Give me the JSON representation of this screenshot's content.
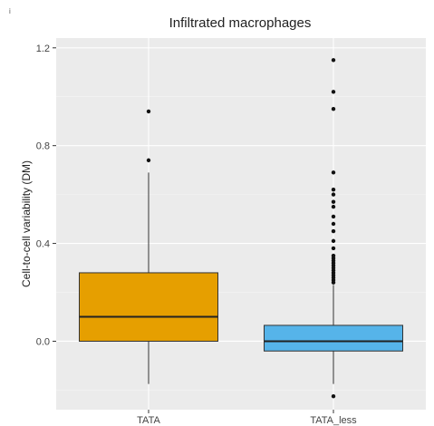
{
  "chart_data": {
    "type": "box",
    "title": "Infiltrated macrophages",
    "xlabel": "",
    "ylabel": "Cell-to-cell variability (DM)",
    "ylim": [
      -0.28,
      1.24
    ],
    "yticks": [
      0.0,
      0.4,
      0.8,
      1.2
    ],
    "ytick_labels": [
      "0.0",
      "0.4",
      "0.8",
      "1.2"
    ],
    "grid": true,
    "corner_mark": "i",
    "categories": [
      "TATA",
      "TATA_less"
    ],
    "series": [
      {
        "category": "TATA",
        "color": "#E69F00",
        "whisker_low": -0.175,
        "q1": 0.0,
        "median": 0.1,
        "q3": 0.28,
        "whisker_high": 0.69,
        "outliers": [
          0.74,
          0.94
        ]
      },
      {
        "category": "TATA_less",
        "color": "#56B4E9",
        "whisker_low": -0.175,
        "q1": -0.04,
        "median": 0.0,
        "q3": 0.065,
        "whisker_high": 0.23,
        "outliers": [
          -0.225,
          0.24,
          0.25,
          0.26,
          0.27,
          0.28,
          0.29,
          0.3,
          0.31,
          0.32,
          0.33,
          0.34,
          0.35,
          0.38,
          0.41,
          0.45,
          0.48,
          0.51,
          0.55,
          0.57,
          0.6,
          0.62,
          0.69,
          0.95,
          1.02,
          1.15
        ]
      }
    ]
  }
}
